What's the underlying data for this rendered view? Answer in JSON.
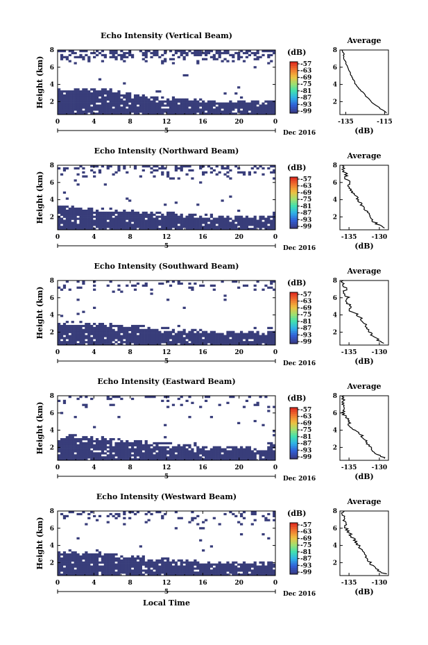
{
  "chart_data": [
    {
      "type": "heatmap",
      "title": "Echo Intensity (Vertical Beam)",
      "ylabel": "Height (km)",
      "x_ticks": [
        "0",
        "4",
        "8",
        "12",
        "16",
        "20",
        "0"
      ],
      "x_range": [
        0,
        24
      ],
      "y_ticks": [
        "2",
        "4",
        "6",
        "8"
      ],
      "y_range": [
        0.5,
        8
      ],
      "date_label": "5",
      "month_label": "Dec 2016",
      "colorbar": {
        "unit": "(dB)",
        "labels": [
          "-57",
          "-63",
          "-69",
          "-75",
          "-81",
          "-87",
          "-93",
          "-99"
        ]
      },
      "echo_layer_top_km": [
        3.2,
        3.3,
        3.3,
        3.3,
        3.3,
        3.2,
        3.0,
        2.8,
        2.6,
        2.5,
        2.3,
        2.2,
        2.2,
        2.1,
        2.1,
        2.0,
        1.9,
        1.9,
        1.8,
        1.8,
        1.8,
        1.8,
        1.7,
        1.7
      ],
      "upper_echo_density": 0.45,
      "average_profile": {
        "title": "Average",
        "xlabel": "(dB)",
        "x_ticks": [
          "-135",
          "-115"
        ],
        "x_range": [
          -138,
          -113
        ],
        "y_ticks": [
          "2",
          "4",
          "6",
          "8"
        ],
        "y_range": [
          0.5,
          8
        ],
        "heights_km": [
          0.7,
          1.0,
          1.5,
          2.0,
          2.5,
          3.0,
          3.5,
          4.0,
          4.5,
          5.0,
          5.5,
          6.0,
          6.5,
          7.0,
          7.5,
          8.0
        ],
        "values_db": [
          -114,
          -116,
          -119,
          -122,
          -124,
          -126,
          -128,
          -130,
          -131,
          -132,
          -133,
          -134,
          -135,
          -136,
          -136,
          -137
        ]
      }
    },
    {
      "type": "heatmap",
      "title": "Echo Intensity (Northward Beam)",
      "ylabel": "Height (km)",
      "x_ticks": [
        "0",
        "4",
        "8",
        "12",
        "16",
        "20",
        "0"
      ],
      "x_range": [
        0,
        24
      ],
      "y_ticks": [
        "2",
        "4",
        "6",
        "8"
      ],
      "y_range": [
        0.5,
        8
      ],
      "date_label": "5",
      "month_label": "Dec 2016",
      "colorbar": {
        "unit": "(dB)",
        "labels": [
          "-57",
          "-63",
          "-69",
          "-75",
          "-81",
          "-87",
          "-93",
          "-99"
        ]
      },
      "echo_layer_top_km": [
        2.9,
        2.9,
        2.8,
        2.8,
        2.7,
        2.7,
        2.6,
        2.5,
        2.4,
        2.3,
        2.3,
        2.2,
        2.2,
        2.1,
        2.1,
        2.0,
        2.0,
        1.9,
        1.9,
        1.9,
        1.8,
        1.8,
        1.8,
        2.3
      ],
      "upper_echo_density": 0.25,
      "average_profile": {
        "title": "Average",
        "xlabel": "(dB)",
        "x_ticks": [
          "-135",
          "-130"
        ],
        "x_range": [
          -136.5,
          -128.5
        ],
        "y_ticks": [
          "2",
          "4",
          "6",
          "8"
        ],
        "y_range": [
          0.5,
          8
        ],
        "heights_km": [
          0.7,
          1.0,
          1.5,
          2.0,
          2.5,
          3.0,
          3.5,
          4.0,
          4.5,
          5.0,
          5.5,
          6.0,
          6.5,
          7.0,
          7.5,
          8.0
        ],
        "values_db": [
          -129,
          -130,
          -131,
          -131.5,
          -132,
          -132.5,
          -133,
          -133.5,
          -134,
          -134.5,
          -135,
          -135,
          -135.5,
          -135.5,
          -136,
          -136
        ]
      }
    },
    {
      "type": "heatmap",
      "title": "Echo Intensity (Southward Beam)",
      "ylabel": "Height (km)",
      "x_ticks": [
        "0",
        "4",
        "8",
        "12",
        "16",
        "20",
        "0"
      ],
      "x_range": [
        0,
        24
      ],
      "y_ticks": [
        "2",
        "4",
        "6",
        "8"
      ],
      "y_range": [
        0.5,
        8
      ],
      "date_label": "5",
      "month_label": "Dec 2016",
      "colorbar": {
        "unit": "(dB)",
        "labels": [
          "-57",
          "-63",
          "-69",
          "-75",
          "-81",
          "-87",
          "-93",
          "-99"
        ]
      },
      "echo_layer_top_km": [
        2.8,
        2.9,
        2.9,
        2.8,
        2.7,
        2.7,
        2.6,
        2.5,
        2.5,
        2.4,
        2.3,
        2.2,
        2.2,
        2.1,
        2.0,
        2.0,
        1.9,
        1.9,
        1.8,
        1.8,
        1.8,
        1.8,
        1.7,
        2.2
      ],
      "upper_echo_density": 0.15,
      "average_profile": {
        "title": "Average",
        "xlabel": "(dB)",
        "x_ticks": [
          "-135",
          "-130"
        ],
        "x_range": [
          -136.5,
          -128.5
        ],
        "y_ticks": [
          "2",
          "4",
          "6",
          "8"
        ],
        "y_range": [
          0.5,
          8
        ],
        "heights_km": [
          0.7,
          1.0,
          1.5,
          2.0,
          2.5,
          3.0,
          3.5,
          4.0,
          4.5,
          5.0,
          5.5,
          6.0,
          6.5,
          7.0,
          7.5,
          8.0
        ],
        "values_db": [
          -129,
          -130,
          -131,
          -131.5,
          -132,
          -132.5,
          -133,
          -133.5,
          -135,
          -134.5,
          -135.5,
          -135,
          -136,
          -135.5,
          -136,
          -136
        ]
      }
    },
    {
      "type": "heatmap",
      "title": "Echo Intensity (Eastward Beam)",
      "ylabel": "Height (km)",
      "x_ticks": [
        "0",
        "4",
        "8",
        "12",
        "16",
        "20",
        "0"
      ],
      "x_range": [
        0,
        24
      ],
      "y_ticks": [
        "2",
        "4",
        "6",
        "8"
      ],
      "y_range": [
        0.5,
        8
      ],
      "date_label": "5",
      "month_label": "Dec 2016",
      "colorbar": {
        "unit": "(dB)",
        "labels": [
          "-57",
          "-63",
          "-69",
          "-75",
          "-81",
          "-87",
          "-93",
          "-99"
        ]
      },
      "echo_layer_top_km": [
        3.0,
        3.1,
        3.0,
        3.0,
        2.9,
        2.8,
        2.7,
        2.6,
        2.5,
        2.4,
        2.3,
        2.2,
        2.2,
        2.1,
        2.0,
        2.0,
        1.9,
        1.9,
        1.8,
        1.8,
        1.8,
        1.8,
        1.7,
        2.2
      ],
      "upper_echo_density": 0.12,
      "average_profile": {
        "title": "Average",
        "xlabel": "(dB)",
        "x_ticks": [
          "-135",
          "-130"
        ],
        "x_range": [
          -136.5,
          -128.5
        ],
        "y_ticks": [
          "2",
          "4",
          "6",
          "8"
        ],
        "y_range": [
          0.5,
          8
        ],
        "heights_km": [
          0.7,
          1.0,
          1.5,
          2.0,
          2.5,
          3.0,
          3.5,
          4.0,
          4.5,
          5.0,
          5.5,
          6.0,
          6.5,
          7.0,
          7.5,
          8.0
        ],
        "values_db": [
          -129,
          -130,
          -131,
          -131.5,
          -132,
          -132.5,
          -133,
          -134,
          -135,
          -135,
          -135.5,
          -136,
          -136,
          -136,
          -136,
          -136
        ]
      }
    },
    {
      "type": "heatmap",
      "title": "Echo Intensity (Westward Beam)",
      "ylabel": "Height (km)",
      "x_ticks": [
        "0",
        "4",
        "8",
        "12",
        "16",
        "20",
        "0"
      ],
      "x_range": [
        0,
        24
      ],
      "y_ticks": [
        "2",
        "4",
        "6",
        "8"
      ],
      "y_range": [
        0.5,
        8
      ],
      "date_label": "5",
      "month_label": "Dec 2016",
      "xlabel": "Local Time",
      "colorbar": {
        "unit": "(dB)",
        "labels": [
          "-57",
          "-63",
          "-69",
          "-75",
          "-81",
          "-87",
          "-93",
          "-99"
        ]
      },
      "echo_layer_top_km": [
        3.0,
        3.1,
        3.0,
        3.0,
        2.9,
        2.8,
        2.7,
        2.6,
        2.5,
        2.4,
        2.3,
        2.2,
        2.2,
        2.1,
        2.1,
        2.0,
        1.9,
        1.9,
        1.8,
        1.8,
        1.8,
        1.8,
        1.7,
        2.0
      ],
      "upper_echo_density": 0.18,
      "average_profile": {
        "title": "Average",
        "xlabel": "(dB)",
        "x_ticks": [
          "-135",
          "-130"
        ],
        "x_range": [
          -136.5,
          -128.5
        ],
        "y_ticks": [
          "2",
          "4",
          "6",
          "8"
        ],
        "y_range": [
          0.5,
          8
        ],
        "heights_km": [
          0.7,
          1.0,
          1.5,
          2.0,
          2.5,
          3.0,
          3.5,
          4.0,
          4.5,
          5.0,
          5.5,
          6.0,
          6.5,
          7.0,
          7.5,
          8.0
        ],
        "values_db": [
          -129,
          -130,
          -131,
          -131.5,
          -132,
          -132.5,
          -133,
          -133.5,
          -134,
          -134.5,
          -135,
          -135.5,
          -135.5,
          -136,
          -136,
          -136
        ]
      }
    }
  ],
  "colors": {
    "echo": "#383d7a",
    "colorbar_top_to_bottom": [
      "#e03020",
      "#f07830",
      "#f0c040",
      "#a0e070",
      "#40e0b0",
      "#30b0e8",
      "#3060d8",
      "#383d8a"
    ]
  }
}
